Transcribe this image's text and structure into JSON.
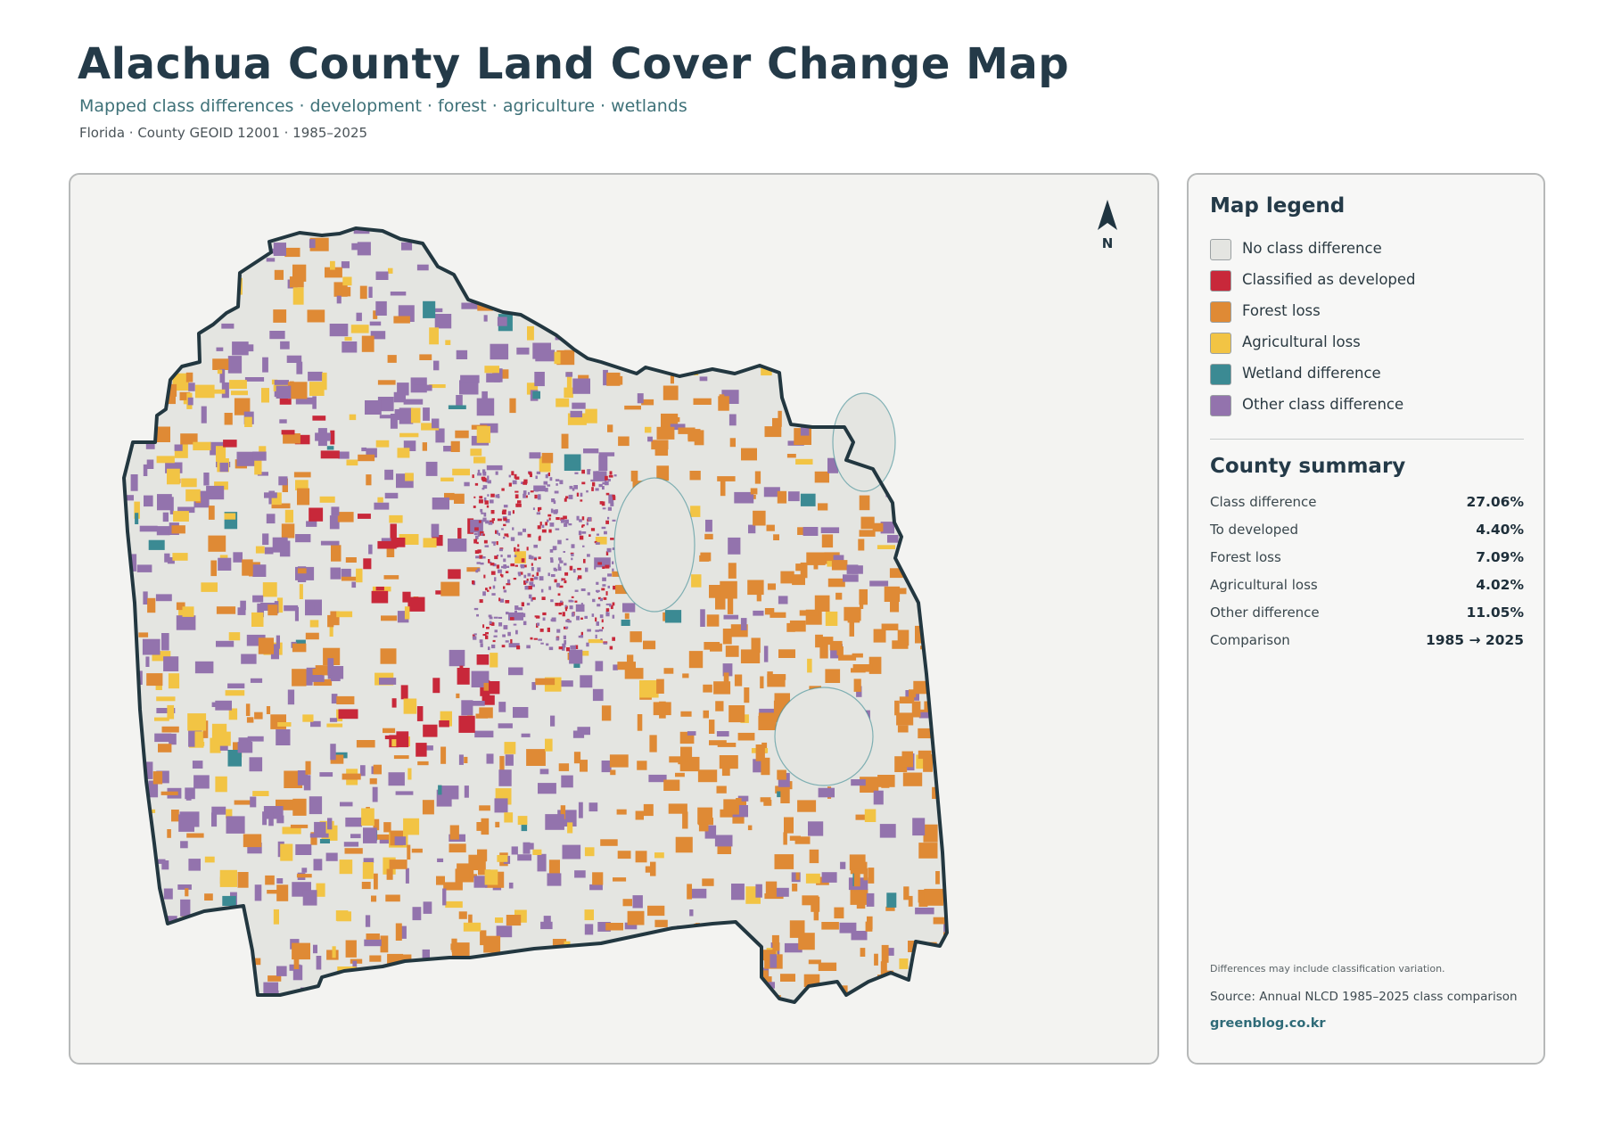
{
  "header": {
    "title": "Alachua County Land Cover Change Map",
    "subtitle": "Mapped class differences · development · forest · agriculture · wetlands",
    "meta": "Florida · County GEOID 12001 · 1985–2025"
  },
  "map": {
    "north_label": "N",
    "colors": {
      "background": "#e4e5e1",
      "outline": "#223740",
      "developed": "#c8283a",
      "forest_loss": "#df8a35",
      "agricultural_loss": "#f2c444",
      "wetland": "#3b8a93",
      "other": "#9373ad"
    }
  },
  "legend": {
    "title": "Map legend",
    "items": [
      {
        "label": "No class difference",
        "color": "#e4e5e1"
      },
      {
        "label": "Classified as developed",
        "color": "#c8283a"
      },
      {
        "label": "Forest loss",
        "color": "#df8a35"
      },
      {
        "label": "Agricultural loss",
        "color": "#f2c444"
      },
      {
        "label": "Wetland difference",
        "color": "#3b8a93"
      },
      {
        "label": "Other class difference",
        "color": "#9373ad"
      }
    ]
  },
  "summary": {
    "title": "County summary",
    "rows": [
      {
        "label": "Class difference",
        "value": "27.06%"
      },
      {
        "label": "To developed",
        "value": "4.40%"
      },
      {
        "label": "Forest loss",
        "value": "7.09%"
      },
      {
        "label": "Agricultural loss",
        "value": "4.02%"
      },
      {
        "label": "Other difference",
        "value": "11.05%"
      },
      {
        "label": "Comparison",
        "value": "1985 → 2025"
      }
    ]
  },
  "footer": {
    "note": "Differences may include classification variation.",
    "source": "Source: Annual NLCD 1985–2025 class comparison",
    "site": "greenblog.co.kr"
  }
}
